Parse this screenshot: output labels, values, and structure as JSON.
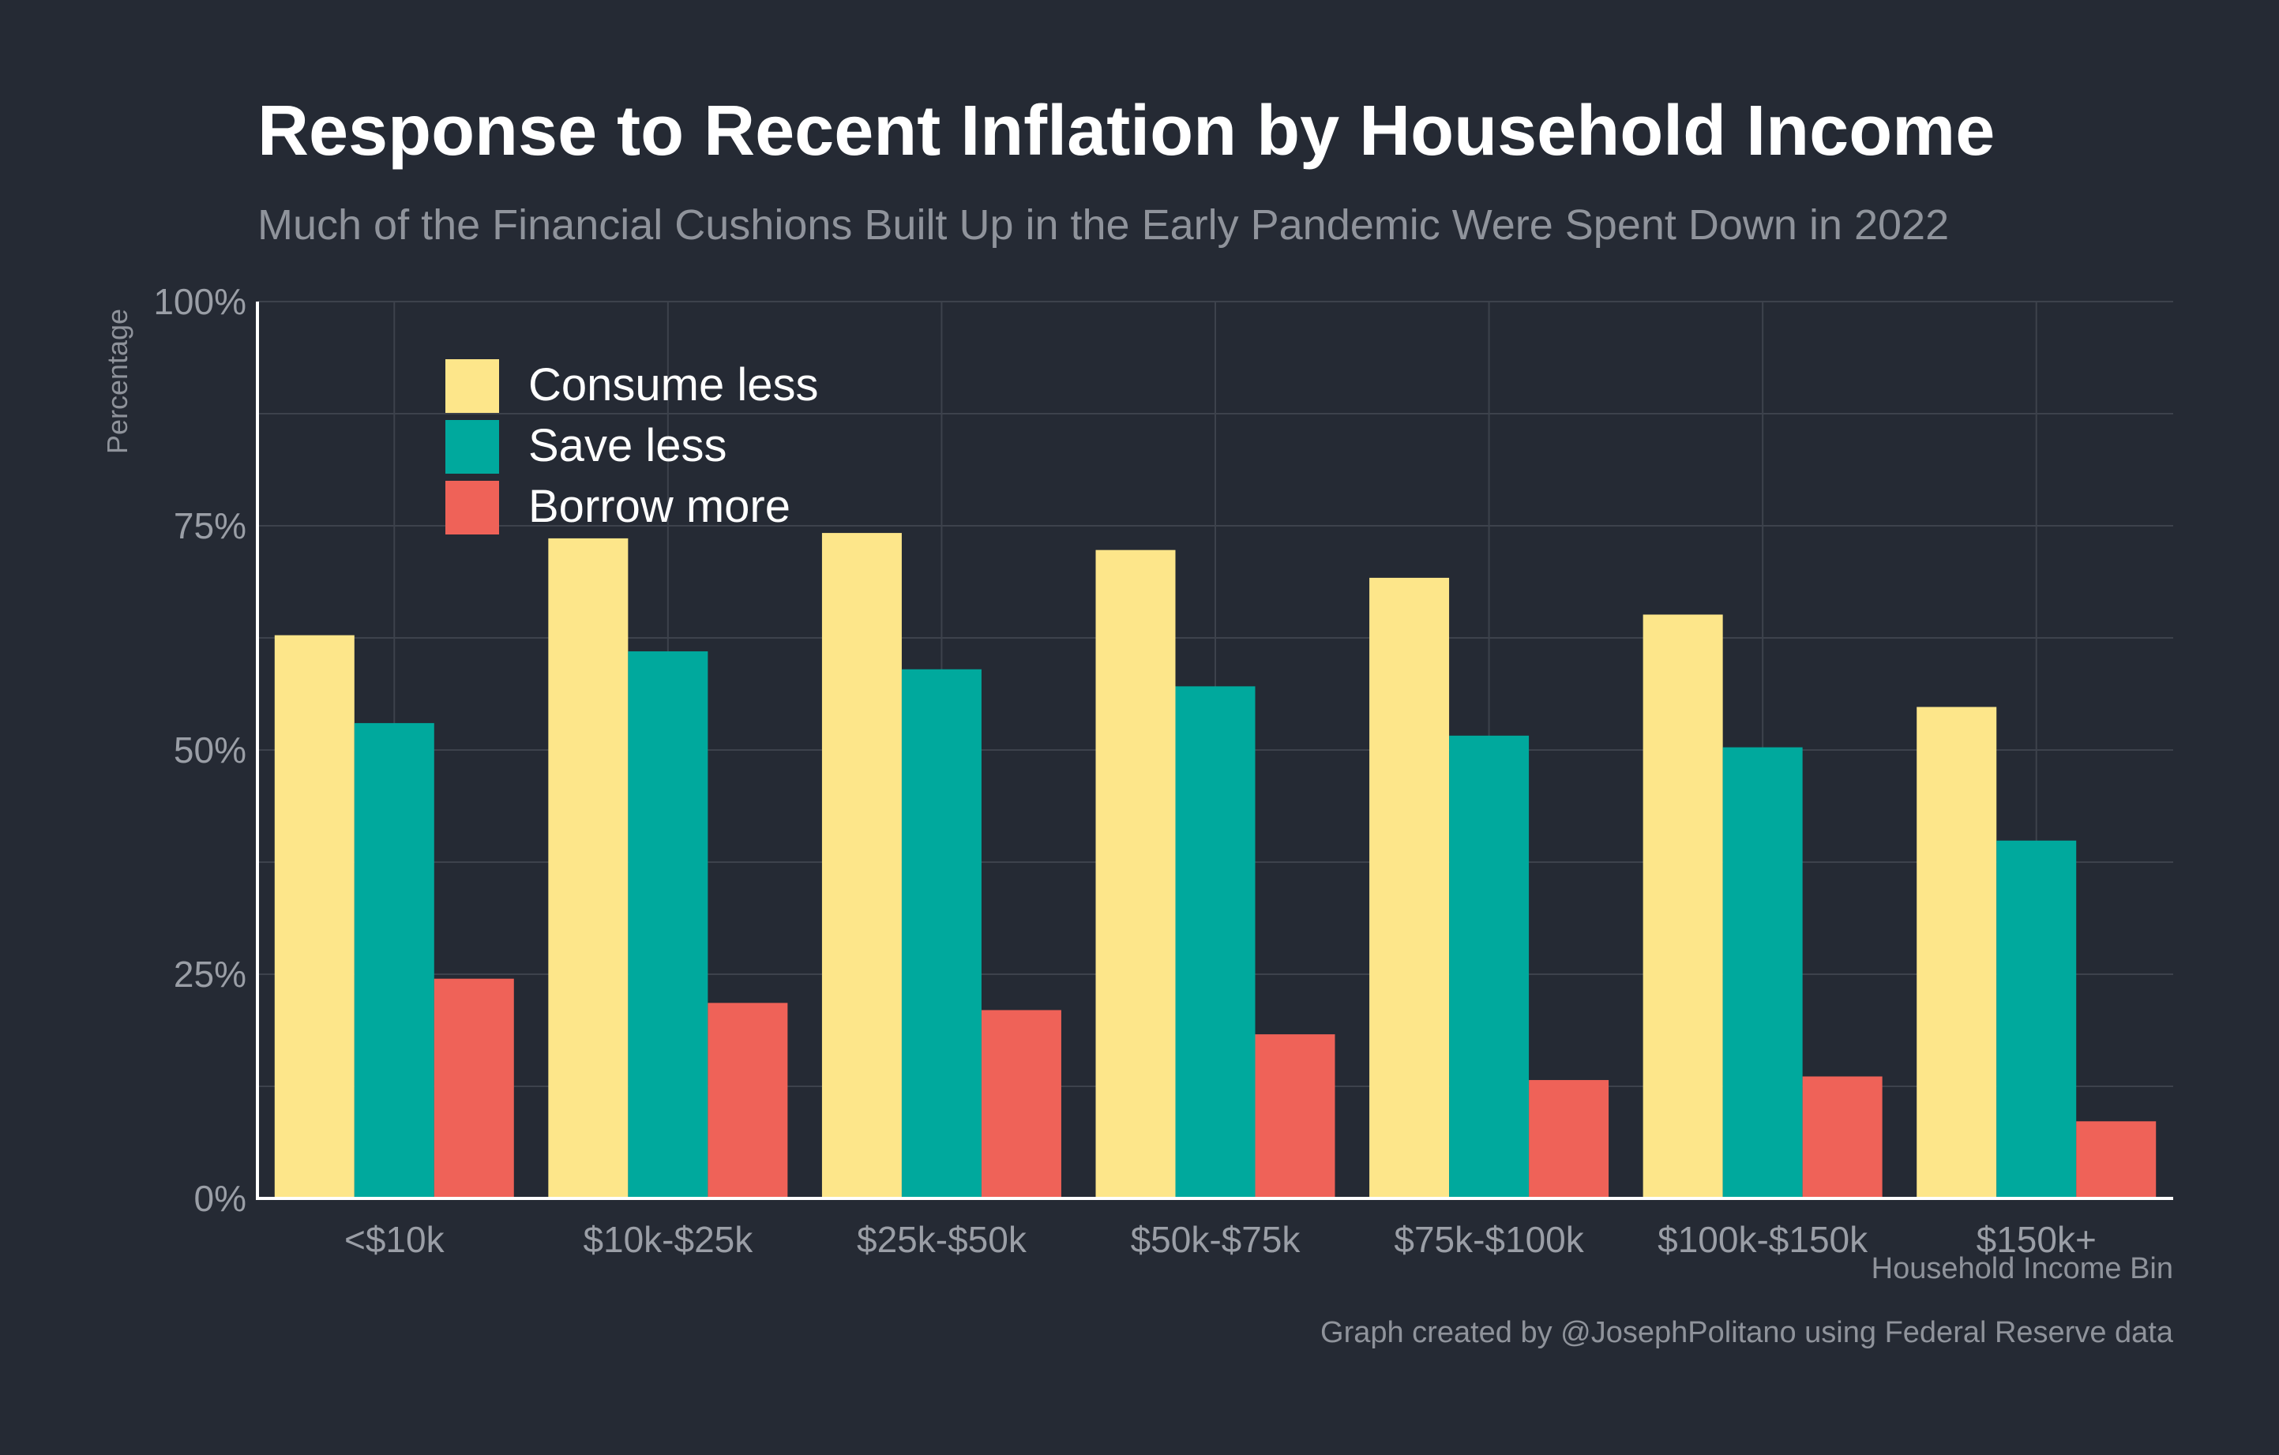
{
  "colors": {
    "background": "#252a34",
    "grid": "#3d424c",
    "axis": "#ffffff",
    "consume_less": "#fde68a",
    "save_less": "#00a99d",
    "borrow_more": "#ef6258"
  },
  "chart_data": {
    "type": "bar",
    "title": "Response to Recent Inflation by Household Income",
    "subtitle": "Much of the Financial Cushions Built Up in the Early Pandemic Were Spent Down in 2022",
    "xlabel": "Household Income Bin",
    "ylabel": "Percentage",
    "categories": [
      "<$10k",
      "$10k-$25k",
      "$25k-$50k",
      "$50k-$75k",
      "$75k-$100k",
      "$100k-$150k",
      "$150k+"
    ],
    "series": [
      {
        "name": "Consume less",
        "color": "#fde68a",
        "values": [
          62.8,
          73.6,
          74.2,
          72.3,
          69.2,
          65.1,
          54.8
        ]
      },
      {
        "name": "Save less",
        "color": "#00a99d",
        "values": [
          53.0,
          61.0,
          59.0,
          57.1,
          51.6,
          50.3,
          39.9
        ]
      },
      {
        "name": "Borrow more",
        "color": "#ef6258",
        "values": [
          24.5,
          21.8,
          21.0,
          18.3,
          13.2,
          13.6,
          8.6
        ]
      }
    ],
    "ylim": [
      0,
      100
    ],
    "y_ticks": [
      {
        "value": 0,
        "label": "0%"
      },
      {
        "value": 25,
        "label": "25%"
      },
      {
        "value": 50,
        "label": "50%"
      },
      {
        "value": 75,
        "label": "75%"
      },
      {
        "value": 100,
        "label": "100%"
      }
    ],
    "grid": true,
    "legend_position": "top-left",
    "caption": "Graph created by @JosephPolitano using Federal Reserve data"
  }
}
